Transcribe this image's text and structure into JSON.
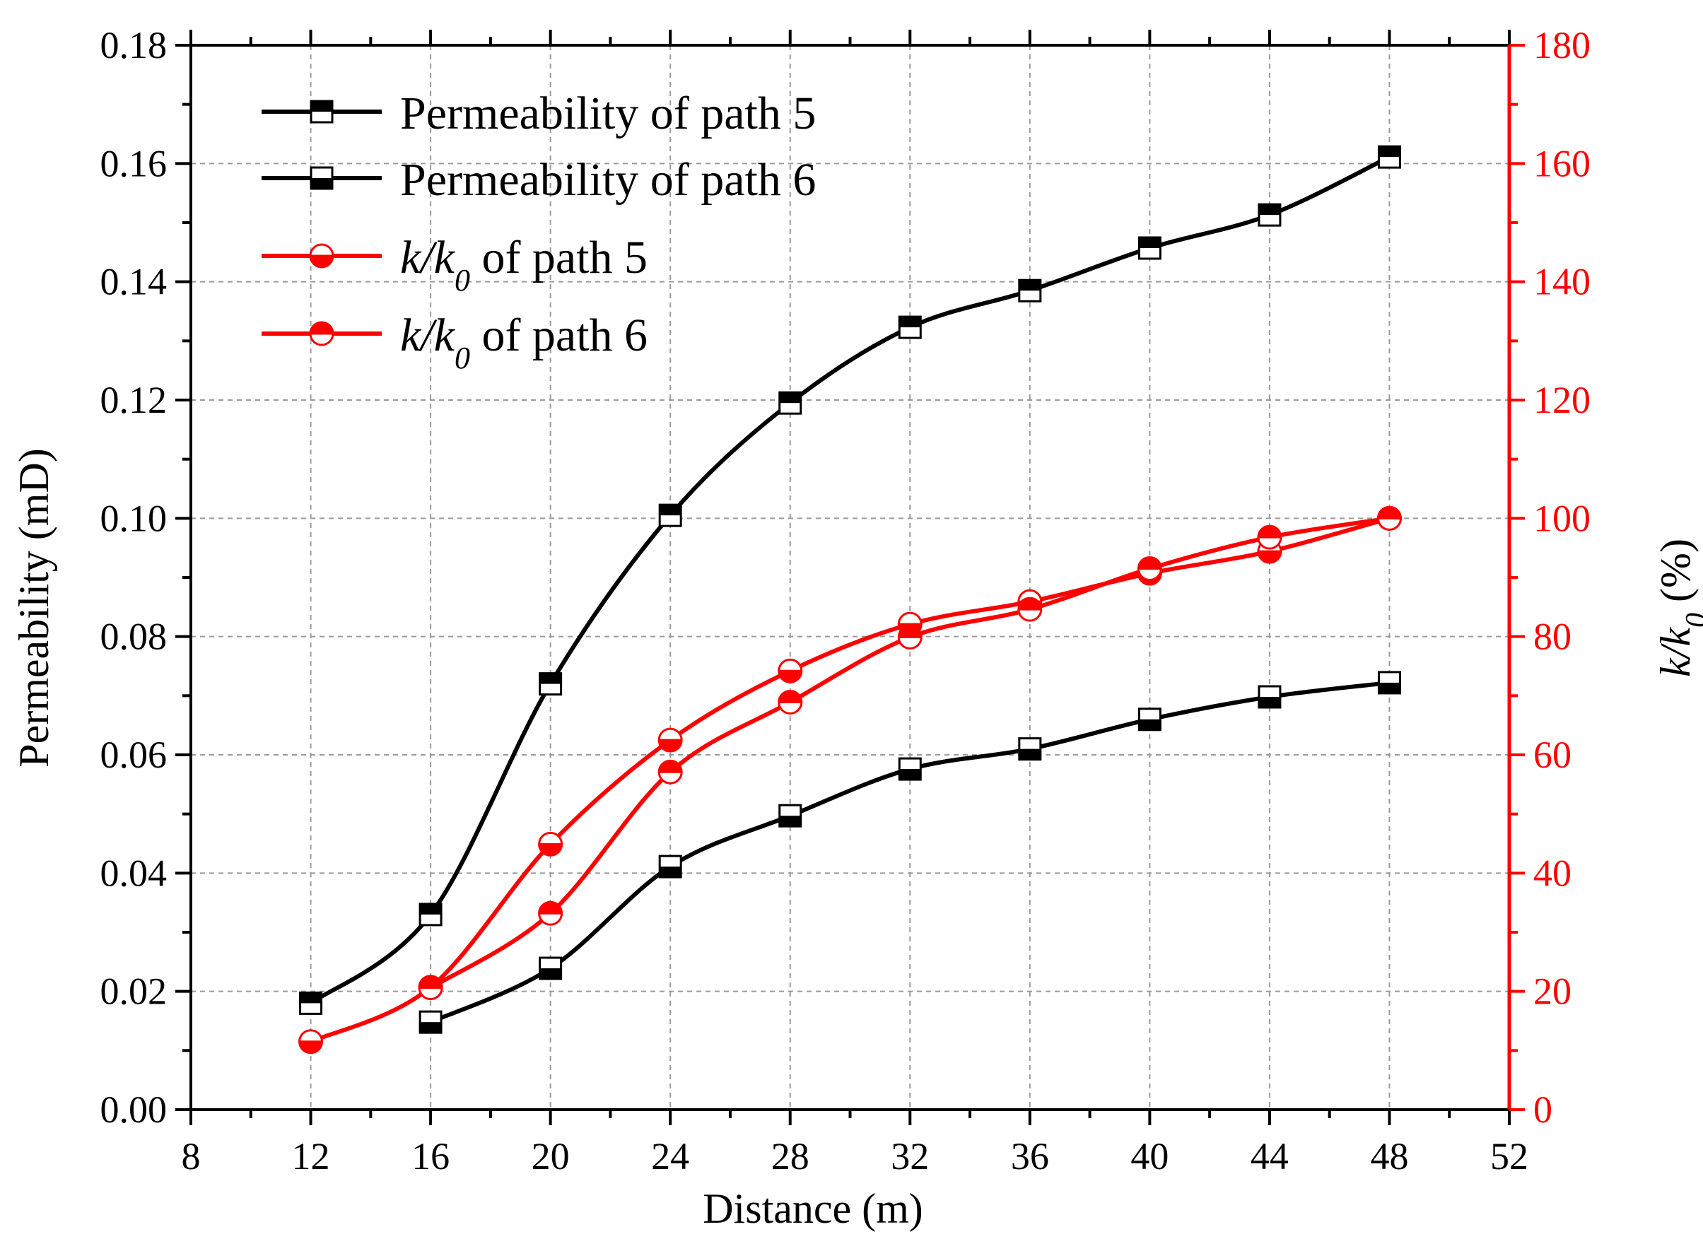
{
  "chart_data": {
    "type": "line",
    "title": "",
    "xlabel": "Distance (m)",
    "ylabel_left": "Permeability (mD)",
    "ylabel_right": "k/k0 (%)",
    "xlim": [
      8,
      52
    ],
    "ylim_left": [
      0,
      0.18
    ],
    "ylim_right": [
      0,
      180
    ],
    "x_ticks": [
      "8",
      "12",
      "16",
      "20",
      "24",
      "28",
      "32",
      "36",
      "40",
      "44",
      "48",
      "52"
    ],
    "y_left_ticks": [
      "0.00",
      "0.02",
      "0.04",
      "0.06",
      "0.08",
      "0.10",
      "0.12",
      "0.14",
      "0.16",
      "0.18"
    ],
    "y_right_ticks": [
      "0",
      "20",
      "40",
      "60",
      "80",
      "100",
      "120",
      "140",
      "160",
      "180"
    ],
    "grid": true,
    "legend_position": "top-left",
    "series": [
      {
        "name": "Permeability of path 5",
        "legend_text": "Permeability of path 5",
        "axis": "left",
        "color": "#000000",
        "marker": "square-half-top",
        "x": [
          12,
          16,
          20,
          24,
          28,
          32,
          36,
          40,
          44,
          48
        ],
        "values": [
          0.018,
          0.033,
          0.072,
          0.1005,
          0.1195,
          0.1323,
          0.1385,
          0.1457,
          0.1513,
          0.1611
        ]
      },
      {
        "name": "Permeability of path 6",
        "legend_text": "Permeability of path 6",
        "axis": "left",
        "color": "#000000",
        "marker": "square-half-bottom",
        "x": [
          16,
          20,
          24,
          28,
          32,
          36,
          40,
          44,
          48
        ],
        "values": [
          0.0148,
          0.0239,
          0.0411,
          0.0497,
          0.0576,
          0.061,
          0.066,
          0.0698,
          0.0722
        ]
      },
      {
        "name": "k/k0 of path 5",
        "legend_prefix": "k/k",
        "legend_sub": "0",
        "legend_suffix": " of path 5",
        "axis": "right",
        "color": "#ff0000",
        "marker": "circle-half-bottom",
        "x": [
          12,
          16,
          20,
          24,
          28,
          32,
          36,
          40,
          44,
          48
        ],
        "values": [
          11.5,
          20.7,
          44.9,
          62.5,
          74.2,
          82.1,
          85.9,
          90.7,
          94.4,
          100
        ]
      },
      {
        "name": "k/k0 of path 6",
        "legend_prefix": "k/k",
        "legend_sub": "0",
        "legend_suffix": " of path 6",
        "axis": "right",
        "color": "#ff0000",
        "marker": "circle-half-top",
        "x": [
          16,
          20,
          24,
          28,
          32,
          36,
          40,
          44,
          48
        ],
        "values": [
          20.6,
          33.2,
          57.1,
          68.9,
          79.9,
          84.6,
          91.5,
          96.8,
          100
        ]
      }
    ]
  }
}
